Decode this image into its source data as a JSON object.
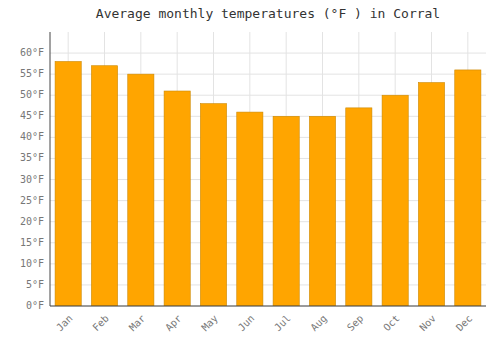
{
  "chart_data": {
    "type": "bar",
    "title": "Average monthly temperatures (°F ) in Corral",
    "categories": [
      "Jan",
      "Feb",
      "Mar",
      "Apr",
      "May",
      "Jun",
      "Jul",
      "Aug",
      "Sep",
      "Oct",
      "Nov",
      "Dec"
    ],
    "values": [
      58,
      57,
      55,
      51,
      48,
      46,
      45,
      45,
      47,
      50,
      53,
      56
    ],
    "color": "#FFA500",
    "ylim": [
      0,
      65
    ],
    "yticks": [
      {
        "value": 0,
        "label": "0°F"
      },
      {
        "value": 5,
        "label": "5°F"
      },
      {
        "value": 10,
        "label": "10°F"
      },
      {
        "value": 15,
        "label": "15°F"
      },
      {
        "value": 20,
        "label": "20°F"
      },
      {
        "value": 25,
        "label": "25°F"
      },
      {
        "value": 30,
        "label": "30°F"
      },
      {
        "value": 35,
        "label": "35°F"
      },
      {
        "value": 40,
        "label": "40°F"
      },
      {
        "value": 45,
        "label": "45°F"
      },
      {
        "value": 50,
        "label": "50°F"
      },
      {
        "value": 55,
        "label": "55°F"
      },
      {
        "value": 60,
        "label": "60°F"
      }
    ],
    "grid": true
  }
}
